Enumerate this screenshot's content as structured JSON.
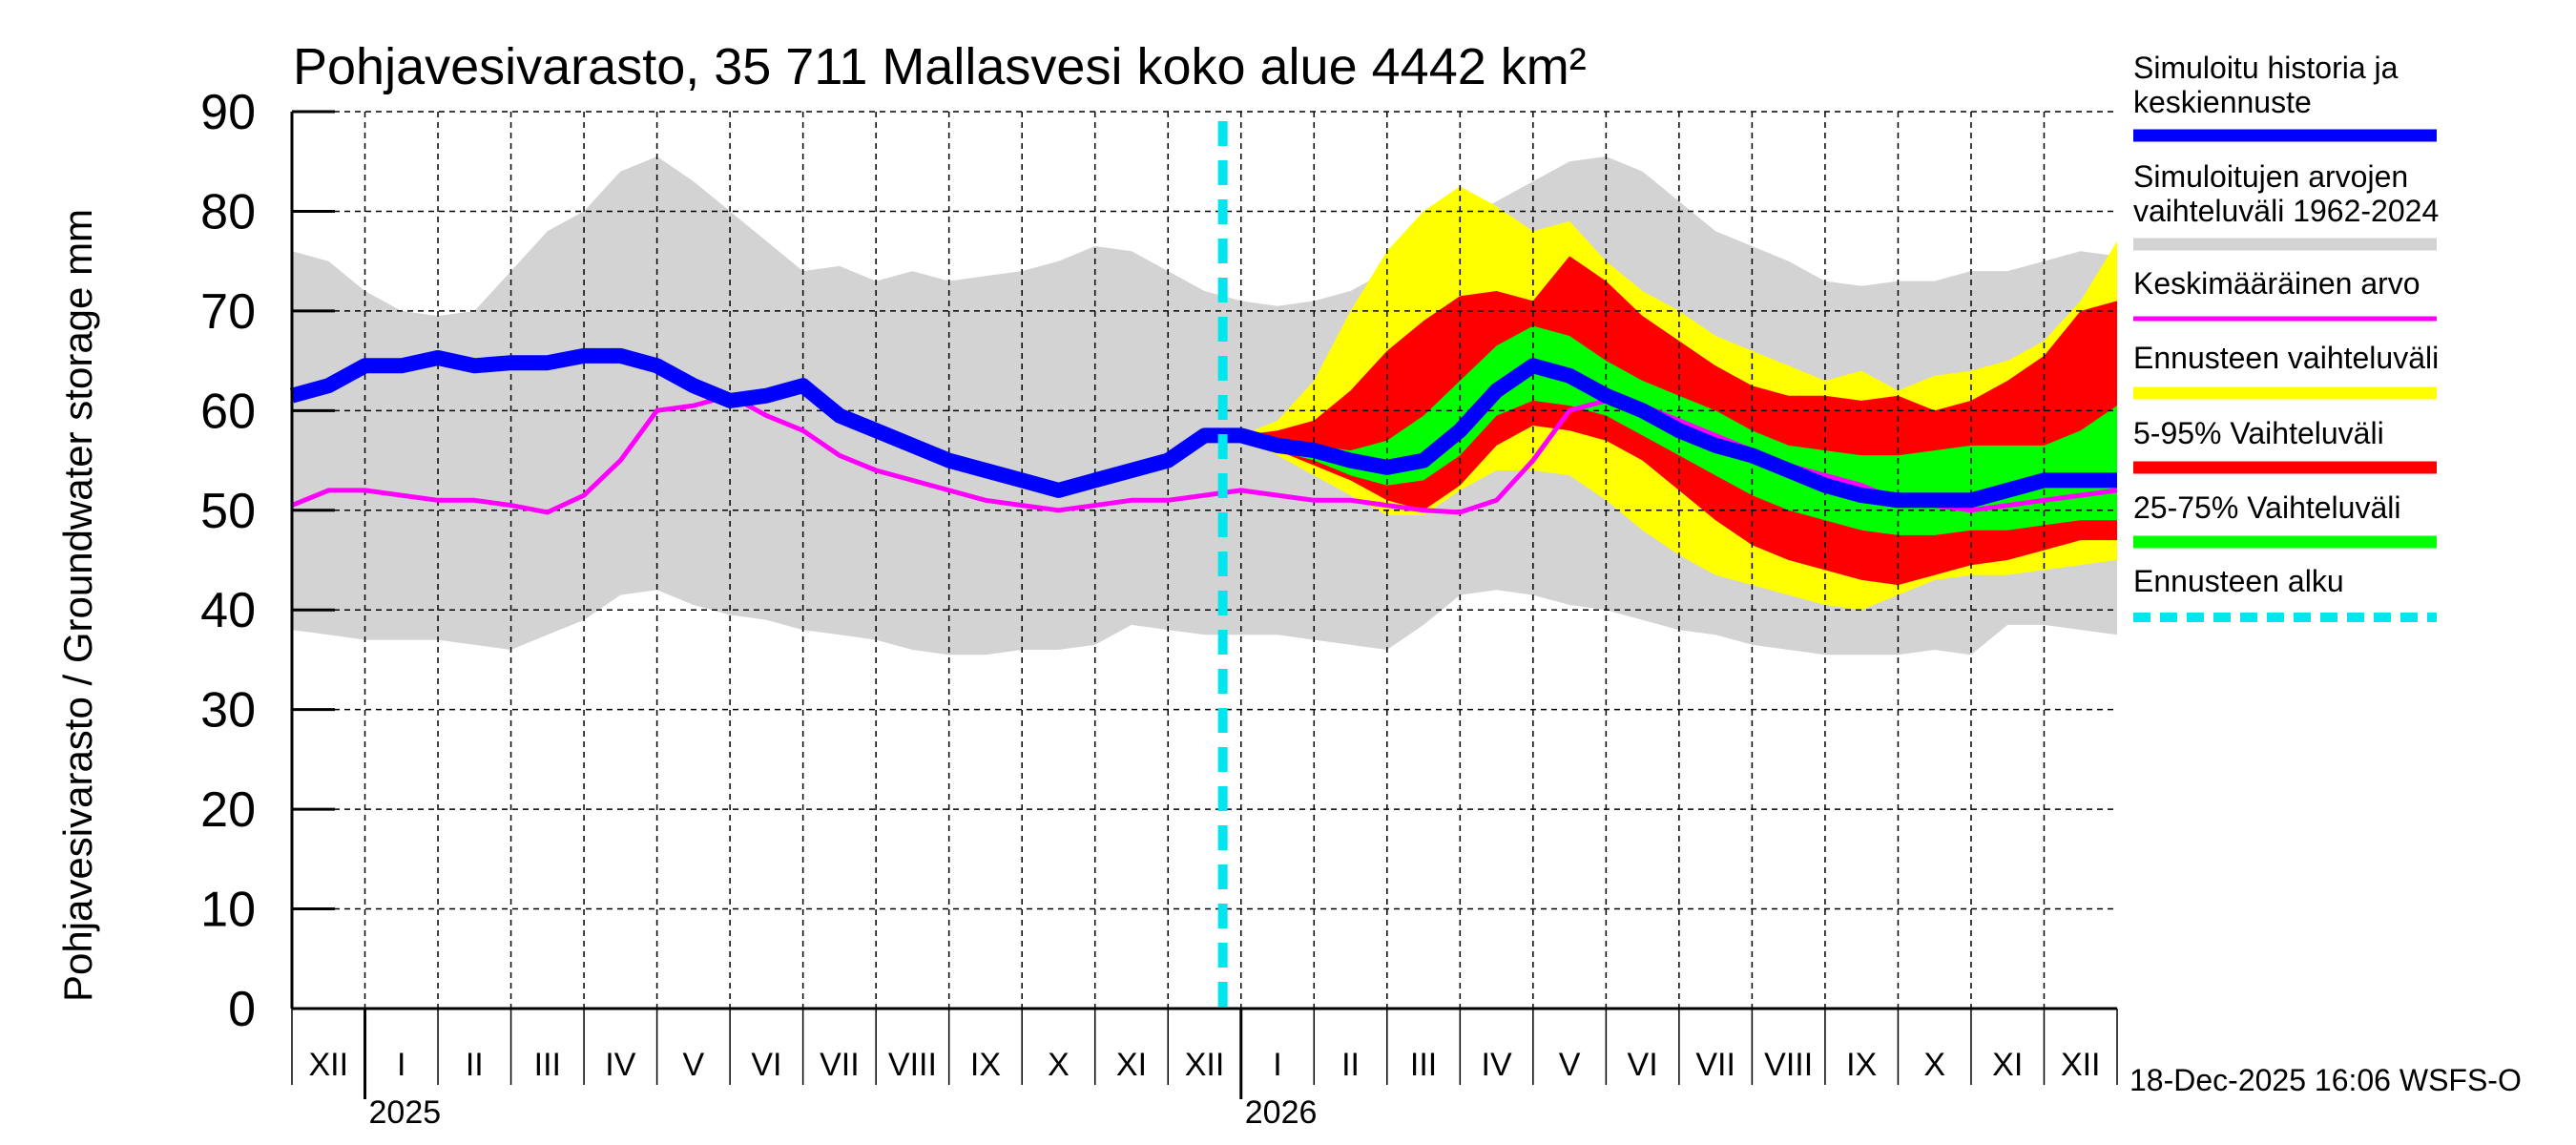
{
  "chart_data": {
    "type": "area",
    "title": "Pohjavesivarasto, 35 711 Mallasvesi koko alue 4442 km²",
    "ylabel": "Pohjavesivarasto / Groundwater storage   mm",
    "ylim": [
      0,
      90
    ],
    "yticks": [
      0,
      10,
      20,
      30,
      40,
      50,
      60,
      70,
      80,
      90
    ],
    "grid": true,
    "x_unit": "months since 1 Dec 2024",
    "xlim": [
      0,
      25
    ],
    "month_labels": [
      "XII",
      "I",
      "II",
      "III",
      "IV",
      "V",
      "VI",
      "VII",
      "VIII",
      "IX",
      "X",
      "XI",
      "XII",
      "I",
      "II",
      "III",
      "IV",
      "V",
      "VI",
      "VII",
      "VIII",
      "IX",
      "X",
      "XI",
      "XII"
    ],
    "year_labels": [
      {
        "label": "2025",
        "x": 1
      },
      {
        "label": "2026",
        "x": 13
      }
    ],
    "forecast_start_x": 12.75,
    "timestamp": "18-Dec-2025 16:06 WSFS-O",
    "legend_position": "right",
    "legend": [
      {
        "label": "Simuloitu historia ja keskiennuste",
        "color": "#0000ff",
        "style": "thick"
      },
      {
        "label": "Simuloitujen arvojen vaihteluväli 1962-2024",
        "color": "#d3d3d3",
        "style": "thick"
      },
      {
        "label": "Keskimääräinen arvo",
        "color": "#ff00ff",
        "style": "thin"
      },
      {
        "label": "Ennusteen vaihteluväli",
        "color": "#ffff00",
        "style": "thick"
      },
      {
        "label": "5-95% Vaihteluväli",
        "color": "#ff0000",
        "style": "thick"
      },
      {
        "label": "25-75% Vaihteluväli",
        "color": "#00ff00",
        "style": "thick"
      },
      {
        "label": "Ennusteen alku",
        "color": "#00e5ee",
        "style": "dashed"
      }
    ],
    "x": [
      0,
      0.5,
      1,
      1.5,
      2,
      2.5,
      3,
      3.5,
      4,
      4.5,
      5,
      5.5,
      6,
      6.5,
      7,
      7.5,
      8,
      8.5,
      9,
      9.5,
      10,
      10.5,
      11,
      11.5,
      12,
      12.5,
      13,
      13.5,
      14,
      14.5,
      15,
      15.5,
      16,
      16.5,
      17,
      17.5,
      18,
      18.5,
      19,
      19.5,
      20,
      20.5,
      21,
      21.5,
      22,
      22.5,
      23,
      23.5,
      24,
      24.5,
      25
    ],
    "series": [
      {
        "name": "Simuloitujen arvojen vaihteluväli 1962-2024 (max)",
        "color": "#d3d3d3",
        "values": [
          76,
          75,
          72,
          70,
          69.5,
          70,
          74,
          78,
          80,
          84,
          85.5,
          83,
          80,
          77,
          74,
          74.5,
          73,
          74,
          73,
          73.5,
          74,
          75,
          76.5,
          76,
          74,
          72,
          71,
          70.5,
          71,
          72,
          74,
          76,
          79,
          81,
          83,
          85,
          85.5,
          84,
          81,
          78,
          76.5,
          75,
          73,
          72.5,
          73,
          73,
          74,
          74,
          75,
          76,
          75.5
        ]
      },
      {
        "name": "Simuloitujen arvojen vaihteluväli 1962-2024 (min)",
        "color": "#d3d3d3",
        "values": [
          38,
          37.5,
          37,
          37,
          37,
          36.5,
          36,
          37.5,
          39,
          41.5,
          42,
          40.5,
          39.5,
          39,
          38,
          37.5,
          37,
          36,
          35.5,
          35.5,
          36,
          36,
          36.5,
          38.5,
          38,
          37.5,
          37.5,
          37.5,
          37,
          36.5,
          36,
          38.5,
          41.5,
          42,
          41.5,
          40.5,
          40,
          39,
          38,
          37.5,
          36.5,
          36,
          35.5,
          35.5,
          35.5,
          36,
          35.5,
          38.5,
          38.5,
          38,
          37.5
        ]
      },
      {
        "name": "Keskimääräinen arvo",
        "color": "#ff00ff",
        "values": [
          50.5,
          52,
          52,
          51.5,
          51,
          51,
          50.5,
          49.8,
          51.5,
          55,
          60,
          60.5,
          61.5,
          59.5,
          58,
          55.5,
          54,
          53,
          52,
          51,
          50.5,
          50,
          50.5,
          51,
          51,
          51.5,
          52,
          51.5,
          51,
          51,
          50.5,
          50,
          49.8,
          51,
          55,
          60,
          61,
          60.5,
          59,
          57.5,
          56,
          54.5,
          53.5,
          52.5,
          51,
          50.5,
          50,
          50.5,
          51,
          51.5,
          52
        ]
      },
      {
        "name": "Ennusteen vaihteluväli (max)",
        "color": "#ffff00",
        "x_from": 12.75,
        "values": [
          null,
          null,
          null,
          null,
          null,
          null,
          null,
          null,
          null,
          null,
          null,
          null,
          null,
          null,
          null,
          null,
          null,
          null,
          null,
          null,
          null,
          null,
          null,
          null,
          null,
          null,
          57.5,
          59,
          63,
          70,
          76,
          80,
          82.5,
          80.5,
          78,
          79,
          75,
          72,
          70,
          67.5,
          66,
          64.5,
          63,
          64,
          62,
          63.5,
          64,
          65,
          67,
          71,
          77
        ]
      },
      {
        "name": "Ennusteen vaihteluväli (min)",
        "color": "#ffff00",
        "x_from": 12.75,
        "values": [
          null,
          null,
          null,
          null,
          null,
          null,
          null,
          null,
          null,
          null,
          null,
          null,
          null,
          null,
          null,
          null,
          null,
          null,
          null,
          null,
          null,
          null,
          null,
          null,
          null,
          null,
          57.5,
          55.5,
          53.5,
          51.5,
          49.5,
          49.5,
          52,
          54,
          54,
          53.5,
          51,
          48,
          45.5,
          43.5,
          42.5,
          41.5,
          40.5,
          40,
          41.5,
          43,
          43.5,
          43.5,
          44,
          44.5,
          45
        ]
      },
      {
        "name": "5-95% Vaihteluväli (max)",
        "color": "#ff0000",
        "x_from": 12.75,
        "values": [
          null,
          null,
          null,
          null,
          null,
          null,
          null,
          null,
          null,
          null,
          null,
          null,
          null,
          null,
          null,
          null,
          null,
          null,
          null,
          null,
          null,
          null,
          null,
          null,
          null,
          null,
          57.5,
          58,
          59,
          62,
          66,
          69,
          71.5,
          72,
          71,
          75.5,
          73,
          69.5,
          67,
          64.5,
          62.5,
          61.5,
          61.5,
          61,
          61.5,
          60,
          61,
          63,
          65.5,
          70,
          71
        ]
      },
      {
        "name": "5-95% Vaihteluväli (min)",
        "color": "#ff0000",
        "x_from": 12.75,
        "values": [
          null,
          null,
          null,
          null,
          null,
          null,
          null,
          null,
          null,
          null,
          null,
          null,
          null,
          null,
          null,
          null,
          null,
          null,
          null,
          null,
          null,
          null,
          null,
          null,
          null,
          null,
          57.5,
          56,
          54.5,
          53,
          51,
          50,
          52.5,
          56.5,
          58.5,
          58,
          57,
          55,
          52,
          49,
          46.5,
          45,
          44,
          43,
          42.5,
          43.5,
          44.5,
          45,
          46,
          47,
          47
        ]
      },
      {
        "name": "25-75% Vaihteluväli (max)",
        "color": "#00ff00",
        "x_from": 12.75,
        "values": [
          null,
          null,
          null,
          null,
          null,
          null,
          null,
          null,
          null,
          null,
          null,
          null,
          null,
          null,
          null,
          null,
          null,
          null,
          null,
          null,
          null,
          null,
          null,
          null,
          null,
          null,
          57.5,
          57,
          56.5,
          56,
          57,
          59.5,
          63,
          66.5,
          68.5,
          67.5,
          65,
          63,
          61.5,
          60,
          58,
          56.5,
          56,
          55.5,
          55.5,
          56,
          56.5,
          56.5,
          56.5,
          58,
          60.5
        ]
      },
      {
        "name": "25-75% Vaihteluväli (min)",
        "color": "#00ff00",
        "x_from": 12.75,
        "values": [
          null,
          null,
          null,
          null,
          null,
          null,
          null,
          null,
          null,
          null,
          null,
          null,
          null,
          null,
          null,
          null,
          null,
          null,
          null,
          null,
          null,
          null,
          null,
          null,
          null,
          null,
          57.5,
          56,
          55,
          53.5,
          52.5,
          53,
          55.5,
          59.5,
          61,
          60.5,
          59.5,
          57.5,
          55.5,
          53.5,
          51.5,
          50,
          49,
          48,
          47.5,
          47.5,
          48,
          48,
          48.5,
          49,
          49
        ]
      },
      {
        "name": "Simuloitu historia ja keskiennuste",
        "color": "#0000ff",
        "values": [
          61.5,
          62.5,
          64.5,
          64.5,
          65.3,
          64.5,
          64.8,
          64.8,
          65.5,
          65.5,
          64.5,
          62.5,
          61,
          61.5,
          62.5,
          59.5,
          58,
          56.5,
          55,
          54,
          53,
          52,
          53,
          54,
          55,
          57.5,
          57.5,
          56.5,
          56,
          55,
          54.3,
          55,
          58,
          62,
          64.5,
          63.5,
          61.5,
          60,
          58,
          56.5,
          55.5,
          54,
          52.5,
          51.5,
          51,
          51,
          51,
          52,
          53,
          53,
          53
        ]
      }
    ]
  }
}
